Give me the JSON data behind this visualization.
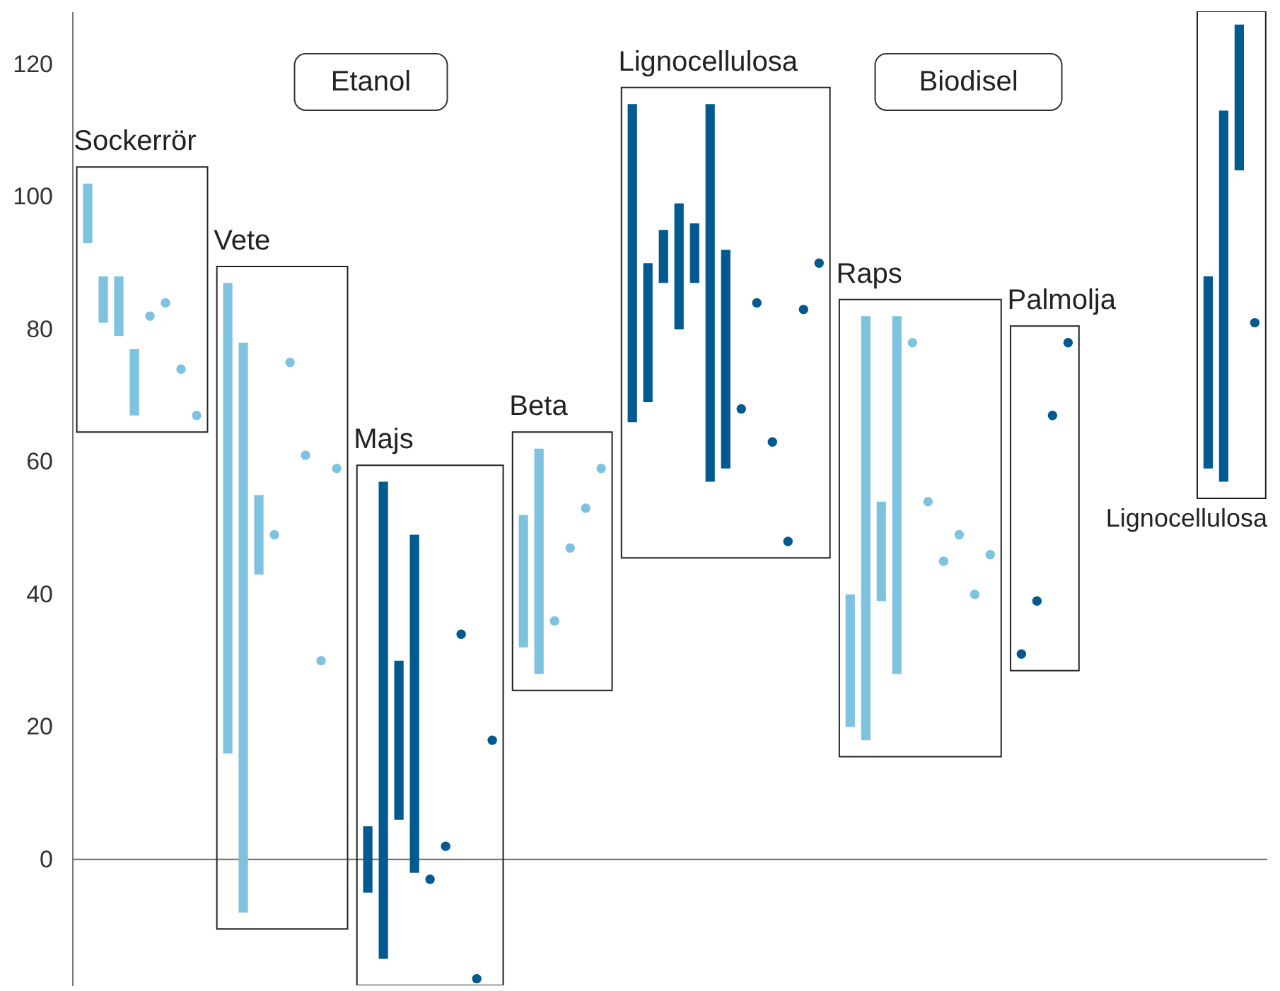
{
  "chart_data": {
    "type": "bar",
    "ylim": [
      -19,
      128
    ],
    "yticks": [
      0,
      20,
      40,
      60,
      80,
      100,
      120
    ],
    "tick_labels": "y",
    "marker": "circle",
    "annotations": [
      "Etanol",
      "Biodisel"
    ],
    "ref_lines": [
      {
        "axis": "y",
        "value": 0,
        "color": "#777777"
      }
    ],
    "categories": [
      null,
      null,
      null,
      null,
      null,
      null,
      null,
      null,
      null,
      null,
      null,
      null,
      null,
      null,
      null,
      null,
      null,
      null,
      null,
      null,
      null,
      null,
      null,
      null,
      null,
      null,
      null,
      null,
      null,
      null,
      null,
      null,
      null,
      null,
      null,
      null,
      null,
      null,
      null,
      null,
      null,
      null,
      null,
      null,
      null,
      null,
      null,
      null,
      null,
      null,
      null,
      null,
      null,
      null,
      null,
      null,
      null,
      null,
      null,
      null,
      null,
      null,
      null,
      null,
      null,
      null,
      null,
      null,
      null,
      null,
      null,
      null,
      null,
      null,
      null,
      null
    ],
    "series": [
      {
        "name": "Sockerrör",
        "color": "#7dc3e0",
        "values": [
          9,
          7,
          9,
          10,
          null,
          null,
          null,
          null,
          null,
          null,
          null,
          null,
          null,
          null,
          null,
          null,
          null,
          null,
          null,
          null,
          null,
          null,
          null,
          null,
          null,
          null,
          null,
          null,
          null,
          null,
          null,
          null,
          null,
          null,
          null,
          null,
          null,
          null,
          null,
          null,
          null,
          null,
          null,
          null,
          null,
          null,
          null,
          null,
          null,
          null,
          null,
          null,
          null,
          null,
          null,
          null,
          null,
          null,
          null,
          null,
          null,
          null,
          null,
          null,
          null,
          null,
          null,
          null,
          null,
          null,
          null,
          null,
          null,
          null,
          null,
          null
        ],
        "base": [
          93,
          81,
          79,
          67,
          null,
          null,
          null,
          null,
          null,
          null,
          null,
          null,
          null,
          null,
          null,
          null,
          null,
          null,
          null,
          null,
          null,
          null,
          null,
          null,
          null,
          null,
          null,
          null,
          null,
          null,
          null,
          null,
          null,
          null,
          null,
          null,
          null,
          null,
          null,
          null,
          null,
          null,
          null,
          null,
          null,
          null,
          null,
          null,
          null,
          null,
          null,
          null,
          null,
          null,
          null,
          null,
          null,
          null,
          null,
          null,
          null,
          null,
          null,
          null,
          null,
          null,
          null,
          null,
          null,
          null,
          null,
          null,
          null,
          null,
          null,
          null
        ]
      },
      {
        "type": "scatter",
        "color": "#7dc3e0",
        "values": [
          null,
          null,
          null,
          null,
          82,
          84,
          74,
          67,
          null,
          null,
          null,
          null,
          null,
          null,
          null,
          null,
          null,
          null,
          null,
          null,
          null,
          null,
          null,
          null,
          null,
          null,
          null,
          null,
          null,
          null,
          null,
          null,
          null,
          null,
          null,
          null,
          null,
          null,
          null,
          null,
          null,
          null,
          null,
          null,
          null,
          null,
          null,
          null,
          null,
          null,
          null,
          null,
          null,
          null,
          null,
          null,
          null,
          null,
          null,
          null,
          null,
          null,
          null,
          null,
          null,
          null,
          null,
          null,
          null,
          null,
          null,
          null,
          null,
          null,
          null,
          null
        ]
      },
      {
        "name": "Vete",
        "color": "#7dc3e0",
        "values": [
          null,
          null,
          null,
          null,
          null,
          null,
          null,
          null,
          null,
          71,
          86,
          12,
          null,
          null,
          null,
          null,
          null,
          null,
          null,
          null,
          null,
          null,
          null,
          null,
          null,
          null,
          null,
          null,
          null,
          null,
          null,
          null,
          null,
          null,
          null,
          null,
          null,
          null,
          null,
          null,
          null,
          null,
          null,
          null,
          null,
          null,
          null,
          null,
          null,
          null,
          null,
          null,
          null,
          null,
          null,
          null,
          null,
          null,
          null,
          null,
          null,
          null,
          null,
          null,
          null,
          null,
          null,
          null,
          null,
          null,
          null,
          null,
          null,
          null,
          null,
          null
        ],
        "base": [
          null,
          null,
          null,
          null,
          null,
          null,
          null,
          null,
          null,
          16,
          -8,
          43,
          null,
          null,
          null,
          null,
          null,
          null,
          null,
          null,
          null,
          null,
          null,
          null,
          null,
          null,
          null,
          null,
          null,
          null,
          null,
          null,
          null,
          null,
          null,
          null,
          null,
          null,
          null,
          null,
          null,
          null,
          null,
          null,
          null,
          null,
          null,
          null,
          null,
          null,
          null,
          null,
          null,
          null,
          null,
          null,
          null,
          null,
          null,
          null,
          null,
          null,
          null,
          null,
          null,
          null,
          null,
          null,
          null,
          null,
          null,
          null,
          null,
          null,
          null,
          null
        ]
      },
      {
        "type": "scatter",
        "color": "#7dc3e0",
        "values": [
          null,
          null,
          null,
          null,
          null,
          null,
          null,
          null,
          null,
          null,
          null,
          null,
          49,
          75,
          61,
          30,
          59,
          null,
          null,
          null,
          null,
          null,
          null,
          null,
          null,
          null,
          null,
          null,
          null,
          null,
          null,
          null,
          null,
          null,
          null,
          null,
          null,
          null,
          null,
          null,
          null,
          null,
          null,
          null,
          null,
          null,
          null,
          null,
          null,
          null,
          null,
          null,
          null,
          null,
          null,
          null,
          null,
          null,
          null,
          null,
          null,
          null,
          null,
          null,
          null,
          null,
          null,
          null,
          null,
          null,
          null,
          null,
          null,
          null,
          null,
          null
        ]
      },
      {
        "name": "Majs",
        "color": "#005a8f",
        "values": [
          null,
          null,
          null,
          null,
          null,
          null,
          null,
          null,
          null,
          null,
          null,
          null,
          null,
          null,
          null,
          null,
          null,
          null,
          10,
          72,
          24,
          51,
          null,
          null,
          null,
          null,
          null,
          null,
          null,
          null,
          null,
          null,
          null,
          null,
          null,
          null,
          null,
          null,
          null,
          null,
          null,
          null,
          null,
          null,
          null,
          null,
          null,
          null,
          null,
          null,
          null,
          null,
          null,
          null,
          null,
          null,
          null,
          null,
          null,
          null,
          null,
          null,
          null,
          null,
          null,
          null,
          null,
          null,
          null,
          null,
          null,
          null,
          null,
          null,
          null,
          null
        ],
        "base": [
          null,
          null,
          null,
          null,
          null,
          null,
          null,
          null,
          null,
          null,
          null,
          null,
          null,
          null,
          null,
          null,
          null,
          null,
          -5,
          -15,
          6,
          -2,
          null,
          null,
          null,
          null,
          null,
          null,
          null,
          null,
          null,
          null,
          null,
          null,
          null,
          null,
          null,
          null,
          null,
          null,
          null,
          null,
          null,
          null,
          null,
          null,
          null,
          null,
          null,
          null,
          null,
          null,
          null,
          null,
          null,
          null,
          null,
          null,
          null,
          null,
          null,
          null,
          null,
          null,
          null,
          null,
          null,
          null,
          null,
          null,
          null,
          null,
          null,
          null,
          null,
          null
        ]
      },
      {
        "type": "scatter",
        "color": "#005a8f",
        "values": [
          null,
          null,
          null,
          null,
          null,
          null,
          null,
          null,
          null,
          null,
          null,
          null,
          null,
          null,
          null,
          null,
          null,
          null,
          null,
          null,
          null,
          null,
          -3,
          2,
          34,
          -18,
          18,
          null,
          null,
          null,
          null,
          null,
          null,
          null,
          null,
          null,
          null,
          null,
          null,
          null,
          null,
          null,
          null,
          null,
          null,
          null,
          null,
          null,
          null,
          null,
          null,
          null,
          null,
          null,
          null,
          null,
          null,
          null,
          null,
          null,
          null,
          null,
          null,
          null,
          null,
          null,
          null,
          null,
          null,
          null,
          null,
          null,
          null,
          null,
          null,
          null
        ]
      },
      {
        "name": "Beta",
        "color": "#7dc3e0",
        "values": [
          null,
          null,
          null,
          null,
          null,
          null,
          null,
          null,
          null,
          null,
          null,
          null,
          null,
          null,
          null,
          null,
          null,
          null,
          null,
          null,
          null,
          null,
          null,
          null,
          null,
          null,
          null,
          null,
          20,
          34,
          null,
          null,
          null,
          null,
          null,
          null,
          null,
          null,
          null,
          null,
          null,
          null,
          null,
          null,
          null,
          null,
          null,
          null,
          null,
          null,
          null,
          null,
          null,
          null,
          null,
          null,
          null,
          null,
          null,
          null,
          null,
          null,
          null,
          null,
          null,
          null,
          null,
          null,
          null,
          null,
          null,
          null,
          null,
          null,
          null,
          null
        ],
        "base": [
          null,
          null,
          null,
          null,
          null,
          null,
          null,
          null,
          null,
          null,
          null,
          null,
          null,
          null,
          null,
          null,
          null,
          null,
          null,
          null,
          null,
          null,
          null,
          null,
          null,
          null,
          null,
          null,
          32,
          28,
          null,
          null,
          null,
          null,
          null,
          null,
          null,
          null,
          null,
          null,
          null,
          null,
          null,
          null,
          null,
          null,
          null,
          null,
          null,
          null,
          null,
          null,
          null,
          null,
          null,
          null,
          null,
          null,
          null,
          null,
          null,
          null,
          null,
          null,
          null,
          null,
          null,
          null,
          null,
          null,
          null,
          null,
          null,
          null,
          null,
          null
        ]
      },
      {
        "type": "scatter",
        "color": "#7dc3e0",
        "values": [
          null,
          null,
          null,
          null,
          null,
          null,
          null,
          null,
          null,
          null,
          null,
          null,
          null,
          null,
          null,
          null,
          null,
          null,
          null,
          null,
          null,
          null,
          null,
          null,
          null,
          null,
          null,
          null,
          null,
          null,
          36,
          47,
          53,
          59,
          null,
          null,
          null,
          null,
          null,
          null,
          null,
          null,
          null,
          null,
          null,
          null,
          null,
          null,
          null,
          null,
          null,
          null,
          null,
          null,
          null,
          null,
          null,
          null,
          null,
          null,
          null,
          null,
          null,
          null,
          null,
          null,
          null,
          null,
          null,
          null,
          null,
          null,
          null,
          null,
          null,
          null
        ]
      },
      {
        "name": "Lignocellulosa",
        "type": "bar",
        "color": "#005a8f",
        "values": [
          null,
          null,
          null,
          null,
          null,
          null,
          null,
          null,
          null,
          null,
          null,
          null,
          null,
          null,
          null,
          null,
          null,
          null,
          null,
          null,
          null,
          null,
          null,
          null,
          null,
          null,
          null,
          null,
          null,
          null,
          null,
          null,
          null,
          null,
          null,
          48,
          21,
          8,
          19,
          9,
          57,
          33,
          null,
          null,
          null,
          null,
          null,
          null,
          null,
          null,
          null,
          null,
          null,
          null,
          null,
          null,
          null,
          null,
          null,
          null,
          null,
          null,
          null,
          null,
          null,
          null,
          null,
          null,
          null,
          null,
          null,
          null,
          null,
          null,
          null,
          null
        ],
        "base": [
          null,
          null,
          null,
          null,
          null,
          null,
          null,
          null,
          null,
          null,
          null,
          null,
          null,
          null,
          null,
          null,
          null,
          null,
          null,
          null,
          null,
          null,
          null,
          null,
          null,
          null,
          null,
          null,
          null,
          null,
          null,
          null,
          null,
          null,
          null,
          66,
          69,
          87,
          80,
          87,
          57,
          59,
          null,
          null,
          null,
          null,
          null,
          null,
          null,
          null,
          null,
          null,
          null,
          null,
          null,
          null,
          null,
          null,
          null,
          null,
          null,
          null,
          null,
          null,
          null,
          null,
          null,
          null,
          null,
          null,
          null,
          null,
          null,
          null,
          null,
          null
        ]
      },
      {
        "type": "scatter",
        "color": "#005a8f",
        "values": [
          null,
          null,
          null,
          null,
          null,
          null,
          null,
          null,
          null,
          null,
          null,
          null,
          null,
          null,
          null,
          null,
          null,
          null,
          null,
          null,
          null,
          null,
          null,
          null,
          null,
          null,
          null,
          null,
          null,
          null,
          null,
          null,
          null,
          null,
          null,
          null,
          null,
          null,
          null,
          null,
          null,
          null,
          68,
          84,
          63,
          48,
          83,
          90,
          null,
          null,
          null,
          null,
          null,
          null,
          null,
          null,
          null,
          null,
          null,
          null,
          null,
          null,
          null,
          null,
          null,
          null,
          null,
          null,
          null,
          null,
          null,
          null,
          null,
          null,
          null,
          null
        ]
      },
      {
        "name": "Raps",
        "color": "#7dc3e0",
        "values": [
          null,
          null,
          null,
          null,
          null,
          null,
          null,
          null,
          null,
          null,
          null,
          null,
          null,
          null,
          null,
          null,
          null,
          null,
          null,
          null,
          null,
          null,
          null,
          null,
          null,
          null,
          null,
          null,
          null,
          null,
          null,
          null,
          null,
          null,
          null,
          null,
          null,
          null,
          null,
          null,
          null,
          null,
          null,
          null,
          null,
          null,
          null,
          null,
          null,
          20,
          64,
          15,
          54,
          null,
          null,
          null,
          null,
          null,
          null,
          null,
          null,
          null,
          null,
          null,
          null,
          null,
          null,
          null,
          null,
          null,
          null,
          null,
          null,
          null,
          null,
          null
        ],
        "base": [
          null,
          null,
          null,
          null,
          null,
          null,
          null,
          null,
          null,
          null,
          null,
          null,
          null,
          null,
          null,
          null,
          null,
          null,
          null,
          null,
          null,
          null,
          null,
          null,
          null,
          null,
          null,
          null,
          null,
          null,
          null,
          null,
          null,
          null,
          null,
          null,
          null,
          null,
          null,
          null,
          null,
          null,
          null,
          null,
          null,
          null,
          null,
          null,
          null,
          20,
          18,
          39,
          28,
          null,
          null,
          null,
          null,
          null,
          null,
          null,
          null,
          null,
          null,
          null,
          null,
          null,
          null,
          null,
          null,
          null,
          null,
          null,
          null,
          null,
          null,
          null
        ]
      },
      {
        "type": "scatter",
        "color": "#7dc3e0",
        "values": [
          null,
          null,
          null,
          null,
          null,
          null,
          null,
          null,
          null,
          null,
          null,
          null,
          null,
          null,
          null,
          null,
          null,
          null,
          null,
          null,
          null,
          null,
          null,
          null,
          null,
          null,
          null,
          null,
          null,
          null,
          null,
          null,
          null,
          null,
          null,
          null,
          null,
          null,
          null,
          null,
          null,
          null,
          null,
          null,
          null,
          null,
          null,
          null,
          null,
          null,
          null,
          null,
          null,
          78,
          54,
          45,
          49,
          40,
          46,
          null,
          null,
          null,
          null,
          null,
          null,
          null,
          null,
          null,
          null,
          null,
          null,
          null,
          null,
          null,
          null,
          null
        ]
      },
      {
        "name": "Palmolja",
        "type": "scatter",
        "color": "#005a8f",
        "values": [
          null,
          null,
          null,
          null,
          null,
          null,
          null,
          null,
          null,
          null,
          null,
          null,
          null,
          null,
          null,
          null,
          null,
          null,
          null,
          null,
          null,
          null,
          null,
          null,
          null,
          null,
          null,
          null,
          null,
          null,
          null,
          null,
          null,
          null,
          null,
          null,
          null,
          null,
          null,
          null,
          null,
          null,
          null,
          null,
          null,
          null,
          null,
          null,
          null,
          null,
          null,
          null,
          null,
          null,
          null,
          null,
          null,
          null,
          null,
          null,
          31,
          39,
          67,
          78,
          null,
          null,
          null,
          null,
          null,
          null,
          null,
          null,
          null,
          null,
          null,
          null
        ]
      },
      {
        "name": "Lignocellulosa",
        "type": "bar",
        "color": "#005a8f",
        "values": [
          null,
          null,
          null,
          null,
          null,
          null,
          null,
          null,
          null,
          null,
          null,
          null,
          null,
          null,
          null,
          null,
          null,
          null,
          null,
          null,
          null,
          null,
          null,
          null,
          null,
          null,
          null,
          null,
          null,
          null,
          null,
          null,
          null,
          null,
          null,
          null,
          null,
          null,
          null,
          null,
          null,
          null,
          null,
          null,
          null,
          null,
          null,
          null,
          null,
          null,
          null,
          null,
          null,
          null,
          null,
          null,
          null,
          null,
          null,
          null,
          null,
          null,
          null,
          null,
          null,
          null,
          null,
          null,
          null,
          null,
          null,
          null,
          29,
          56,
          22,
          null
        ],
        "base": [
          null,
          null,
          null,
          null,
          null,
          null,
          null,
          null,
          null,
          null,
          null,
          null,
          null,
          null,
          null,
          null,
          null,
          null,
          null,
          null,
          null,
          null,
          null,
          null,
          null,
          null,
          null,
          null,
          null,
          null,
          null,
          null,
          null,
          null,
          null,
          null,
          null,
          null,
          null,
          null,
          null,
          null,
          null,
          null,
          null,
          null,
          null,
          null,
          null,
          null,
          null,
          null,
          null,
          null,
          null,
          null,
          null,
          null,
          null,
          null,
          null,
          null,
          null,
          null,
          null,
          null,
          null,
          null,
          null,
          null,
          null,
          null,
          59,
          57,
          104,
          null
        ]
      },
      {
        "type": "scatter",
        "color": "#005a8f",
        "values": [
          null,
          null,
          null,
          null,
          null,
          null,
          null,
          null,
          null,
          null,
          null,
          null,
          null,
          null,
          null,
          null,
          null,
          null,
          null,
          null,
          null,
          null,
          null,
          null,
          null,
          null,
          null,
          null,
          null,
          null,
          null,
          null,
          null,
          null,
          null,
          null,
          null,
          null,
          null,
          null,
          null,
          null,
          null,
          null,
          null,
          null,
          null,
          null,
          null,
          null,
          null,
          null,
          null,
          null,
          null,
          null,
          null,
          null,
          null,
          null,
          null,
          null,
          null,
          null,
          null,
          null,
          null,
          null,
          null,
          null,
          null,
          null,
          null,
          null,
          null,
          81
        ]
      }
    ]
  }
}
